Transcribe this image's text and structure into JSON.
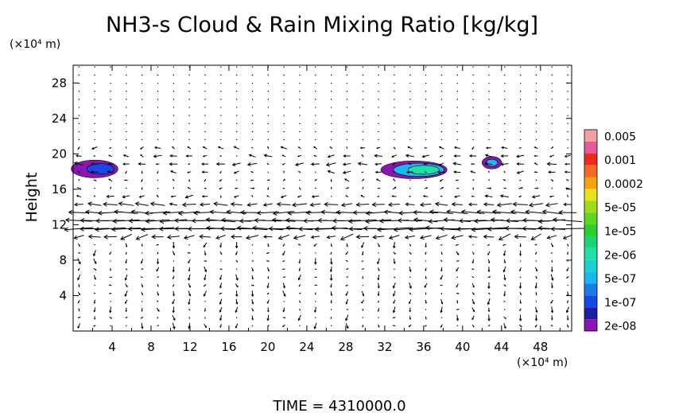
{
  "chart_data": {
    "type": "contour",
    "title": "NH3-s Cloud & Rain Mixing Ratio [kg/kg]",
    "ylabel": "Height",
    "y_unit": "(×10⁴ m)",
    "x_unit": "(×10⁴ m)",
    "xlim": [
      0,
      51.2
    ],
    "ylim": [
      0,
      30
    ],
    "x_ticks": [
      4,
      8,
      12,
      16,
      20,
      24,
      28,
      32,
      36,
      40,
      44,
      48
    ],
    "y_ticks": [
      4,
      8,
      12,
      16,
      20,
      24,
      28
    ],
    "x_tick_labels": [
      "4",
      "8",
      "12",
      "16",
      "20",
      "24",
      "28",
      "32",
      "36",
      "40",
      "44",
      "48"
    ],
    "y_tick_labels": [
      "4",
      "8",
      "12",
      "16",
      "20",
      "24",
      "28"
    ],
    "legend": {
      "placement": "right",
      "levels": [
        {
          "label": "0.005",
          "color": "#f4a0a0"
        },
        {
          "label": "0.001",
          "color": "#ee2a1a"
        },
        {
          "label": "0.0002",
          "color": "#f5a30f"
        },
        {
          "label": "5e-05",
          "color": "#9ddc18"
        },
        {
          "label": "1e-05",
          "color": "#28d02c"
        },
        {
          "label": "2e-06",
          "color": "#1ee0a8"
        },
        {
          "label": "5e-07",
          "color": "#18b8f0"
        },
        {
          "label": "1e-07",
          "color": "#1848e8"
        },
        {
          "label": "2e-08",
          "color": "#8a14b4"
        }
      ],
      "extra_colors": [
        "#e45a9a",
        "#f36b22",
        "#e8e21c",
        "#5cd820",
        "#1cd478",
        "#1cd0d0",
        "#1a7ce8",
        "#1e1ea0"
      ]
    },
    "cloud_patches": [
      {
        "x": 2.2,
        "y": 18.3,
        "rx": 2.4,
        "ry": 1.0,
        "level": "2e-08"
      },
      {
        "x": 2.8,
        "y": 18.3,
        "rx": 1.4,
        "ry": 0.6,
        "level": "1e-07"
      },
      {
        "x": 35.0,
        "y": 18.2,
        "rx": 3.4,
        "ry": 1.0,
        "level": "2e-08"
      },
      {
        "x": 35.5,
        "y": 18.2,
        "rx": 2.6,
        "ry": 0.75,
        "level": "5e-07"
      },
      {
        "x": 36.0,
        "y": 18.2,
        "rx": 1.6,
        "ry": 0.5,
        "level": "2e-06"
      },
      {
        "x": 43.0,
        "y": 19.0,
        "rx": 1.0,
        "ry": 0.7,
        "level": "2e-08"
      },
      {
        "x": 43.0,
        "y": 19.0,
        "rx": 0.6,
        "ry": 0.4,
        "level": "5e-07"
      }
    ],
    "wind_jets": [
      {
        "y": 12.0,
        "u": -1.0,
        "strength": 1.0
      },
      {
        "y": 13.2,
        "u": -0.9,
        "strength": 0.9
      },
      {
        "y": 11.2,
        "u": -0.8,
        "strength": 0.8
      },
      {
        "y": 14.5,
        "u": -0.6,
        "strength": 0.6
      },
      {
        "y": 18.5,
        "u": -0.5,
        "strength": 0.5
      },
      {
        "y": 20.0,
        "u": -0.4,
        "strength": 0.4
      }
    ],
    "time_label": "TIME = 4310000.0"
  }
}
